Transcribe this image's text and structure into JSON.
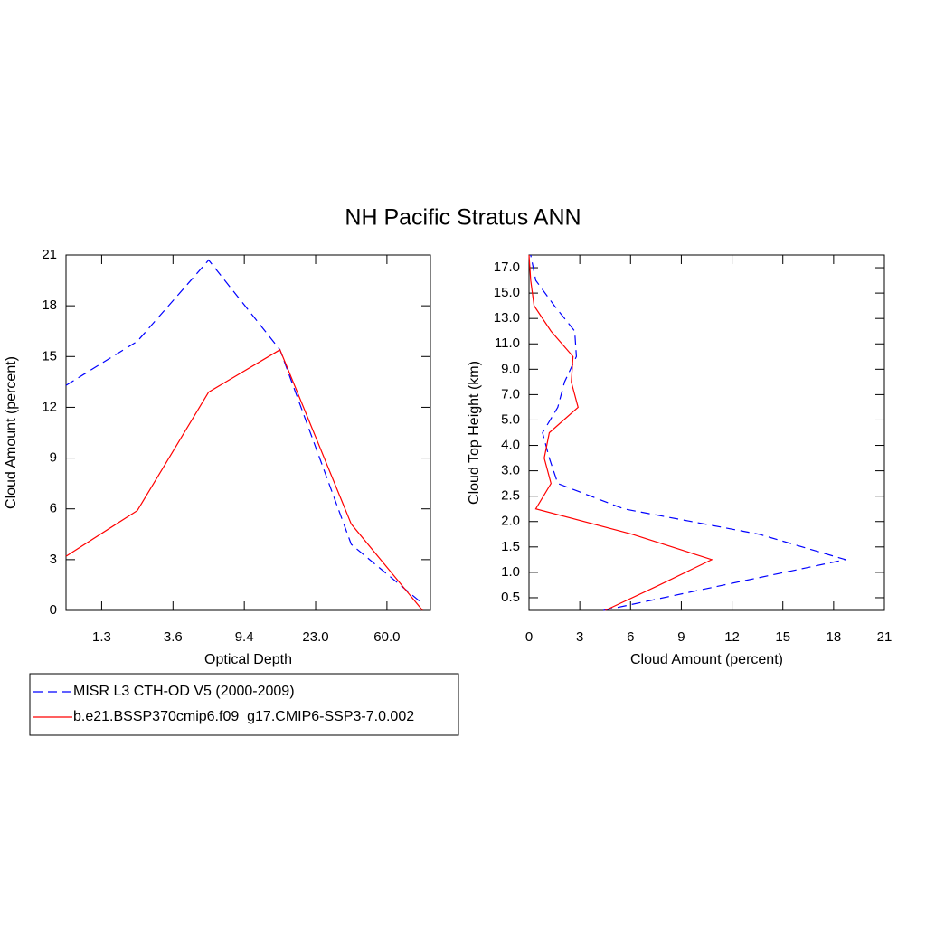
{
  "title": "NH Pacific Stratus ANN",
  "chart_data": [
    {
      "type": "line",
      "xlabel": "Optical Depth",
      "ylabel": "Cloud Amount (percent)",
      "x": [
        0,
        1,
        2,
        3,
        4,
        5
      ],
      "xlim": [
        0,
        5.11
      ],
      "xticks": [
        {
          "value": 0.5,
          "label": "1.3"
        },
        {
          "value": 1.5,
          "label": "3.6"
        },
        {
          "value": 2.5,
          "label": "9.4"
        },
        {
          "value": 3.5,
          "label": "23.0"
        },
        {
          "value": 4.5,
          "label": "60.0"
        }
      ],
      "ylim": [
        0,
        21
      ],
      "yticks": [
        0,
        3,
        6,
        9,
        12,
        15,
        18,
        21
      ],
      "series": [
        {
          "name": "MISR L3 CTH-OD V5 (2000-2009)",
          "color": "#0000ff",
          "linestyle": "dashed",
          "values": [
            13.3,
            15.9,
            20.7,
            15.4,
            3.9,
            0.4
          ]
        },
        {
          "name": "b.e21.BSSP370cmip6.f09_g17.CMIP6-SSP3-7.0.002",
          "color": "#ff0000",
          "linestyle": "solid",
          "values": [
            3.2,
            5.9,
            12.9,
            15.4,
            5.1,
            0
          ]
        }
      ]
    },
    {
      "type": "line",
      "orientation": "horizontal",
      "xlabel": "Cloud Amount (percent)",
      "ylabel": "Cloud Top Height (km)",
      "xlim": [
        0,
        21
      ],
      "xticks": [
        0,
        3,
        6,
        9,
        12,
        15,
        18,
        21
      ],
      "ylim": [
        -0.5,
        13.5
      ],
      "yticks": [
        {
          "value": 0,
          "label": "0.5"
        },
        {
          "value": 1,
          "label": "1.0"
        },
        {
          "value": 2,
          "label": "1.5"
        },
        {
          "value": 3,
          "label": "2.0"
        },
        {
          "value": 4,
          "label": "2.5"
        },
        {
          "value": 5,
          "label": "3.0"
        },
        {
          "value": 6,
          "label": "4.0"
        },
        {
          "value": 7,
          "label": "5.0"
        },
        {
          "value": 8,
          "label": "7.0"
        },
        {
          "value": 9,
          "label": "9.0"
        },
        {
          "value": 10,
          "label": "11.0"
        },
        {
          "value": 11,
          "label": "13.0"
        },
        {
          "value": 12,
          "label": "15.0"
        },
        {
          "value": 13,
          "label": "17.0"
        }
      ],
      "y": [
        -0.5,
        0.5,
        1.5,
        2.5,
        3.5,
        4.5,
        5.5,
        6.5,
        7.5,
        8.5,
        9.5,
        10.5,
        11.5,
        12.5,
        13.5
      ],
      "series": [
        {
          "name": "MISR L3 CTH-OD V5 (2000-2009)",
          "color": "#0000ff",
          "linestyle": "dashed",
          "values": [
            4.4,
            11.5,
            18.7,
            13.6,
            5.6,
            1.7,
            1.2,
            0.8,
            1.7,
            2.1,
            2.8,
            2.7,
            1.5,
            0.4,
            0.1
          ]
        },
        {
          "name": "b.e21.BSSP370cmip6.f09_g17.CMIP6-SSP3-7.0.002",
          "color": "#ff0000",
          "linestyle": "solid",
          "values": [
            4.5,
            7.7,
            10.8,
            6.1,
            0.4,
            1.3,
            0.9,
            1.2,
            2.9,
            2.5,
            2.6,
            1.3,
            0.3,
            0.1,
            0
          ]
        }
      ]
    }
  ]
}
